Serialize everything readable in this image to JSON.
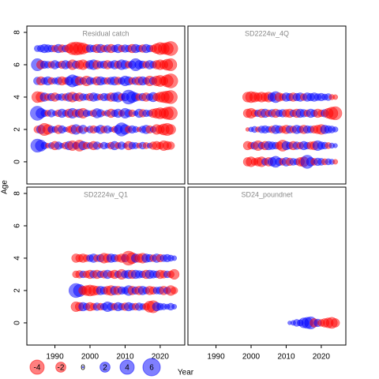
{
  "axes": {
    "xlabel": "Year",
    "ylabel": "Age",
    "xlim": [
      1982,
      2027
    ],
    "ylim": [
      -1.37,
      8.39
    ],
    "xticks": [
      1990,
      2000,
      2010,
      2020
    ],
    "yticks": [
      0,
      2,
      4,
      6,
      8
    ],
    "neg_color": "#ff0000",
    "pos_color": "#0000ff"
  },
  "legend": {
    "values": [
      -4,
      -2,
      0,
      2,
      4,
      6
    ]
  },
  "chart_data": [
    {
      "type": "bubble",
      "title": "Residual catch",
      "x": [
        1985,
        1986,
        1987,
        1988,
        1989,
        1990,
        1991,
        1992,
        1993,
        1994,
        1995,
        1996,
        1997,
        1998,
        1999,
        2000,
        2001,
        2002,
        2003,
        2004,
        2005,
        2006,
        2007,
        2008,
        2009,
        2010,
        2011,
        2012,
        2013,
        2014,
        2015,
        2016,
        2017,
        2018,
        2019,
        2020,
        2021,
        2022,
        2023
      ],
      "ages": [
        1,
        2,
        3,
        4,
        5,
        6,
        7
      ],
      "values": [
        [
          3.5,
          2.5,
          1.0,
          -0.5,
          0.8,
          -1.5,
          1.2,
          0.5,
          -1.0,
          1.5,
          -2.0,
          1.0,
          -2.5,
          1.5,
          -1.0,
          0.8,
          -1.5,
          1.2,
          -0.5,
          1.0,
          0.6,
          -1.0,
          1.5,
          -0.8,
          1.2,
          0.5,
          -1.5,
          1.0,
          0.8,
          -0.6,
          1.0,
          -0.8,
          0.6,
          -1.2,
          -1.5,
          -1.0,
          -2.0,
          -1.5,
          -1.2
        ],
        [
          -1.0,
          1.5,
          -3.0,
          -2.0,
          1.0,
          0.8,
          -1.5,
          1.2,
          0.5,
          -0.8,
          -1.5,
          2.0,
          -1.0,
          1.5,
          -0.5,
          1.0,
          -1.2,
          0.8,
          1.5,
          -1.0,
          1.2,
          0.5,
          -0.8,
          1.5,
          3.5,
          2.0,
          -1.0,
          1.2,
          0.8,
          -0.5,
          1.0,
          1.5,
          -1.2,
          0.8,
          -2.0,
          -1.5,
          -2.5,
          -3.0,
          -2.0
        ],
        [
          4.0,
          2.0,
          1.0,
          -0.8,
          1.2,
          0.5,
          -1.0,
          1.5,
          0.8,
          -1.5,
          2.0,
          -1.2,
          1.5,
          -2.0,
          1.0,
          0.6,
          -1.0,
          1.8,
          1.2,
          -0.5,
          0.8,
          -1.5,
          1.0,
          1.5,
          -0.8,
          2.0,
          1.2,
          -1.0,
          0.5,
          1.5,
          -1.2,
          1.0,
          0.8,
          -1.5,
          -2.0,
          -2.5,
          -2.0,
          -3.0,
          -3.5
        ],
        [
          -2.5,
          -2.0,
          1.5,
          -1.0,
          1.2,
          -1.5,
          0.8,
          1.0,
          -1.0,
          1.5,
          -2.0,
          1.2,
          -1.5,
          1.0,
          0.8,
          -1.2,
          1.5,
          1.0,
          -0.8,
          1.2,
          1.0,
          -1.5,
          1.5,
          2.0,
          -1.0,
          1.2,
          4.0,
          2.5,
          1.5,
          -1.0,
          1.2,
          -1.5,
          1.0,
          1.8,
          -1.2,
          -2.0,
          -2.5,
          -3.0,
          -3.5
        ],
        [
          1.2,
          -1.5,
          1.0,
          1.5,
          -1.0,
          0.8,
          1.2,
          -1.5,
          -1.0,
          1.5,
          3.0,
          2.0,
          -1.5,
          1.0,
          -2.0,
          1.2,
          0.8,
          -1.5,
          1.5,
          1.0,
          -1.0,
          1.2,
          1.5,
          -1.2,
          1.0,
          2.0,
          1.5,
          -1.0,
          1.2,
          -1.5,
          1.5,
          1.0,
          -2.0,
          1.2,
          -2.0,
          -2.5,
          -1.5,
          -3.0,
          -4.0
        ],
        [
          3.0,
          -1.5,
          1.2,
          1.0,
          -1.0,
          1.5,
          0.8,
          -1.2,
          1.5,
          1.0,
          -2.0,
          1.2,
          -1.5,
          -2.0,
          -1.0,
          1.5,
          2.0,
          -1.5,
          1.0,
          1.2,
          -1.5,
          1.0,
          1.5,
          -1.2,
          2.0,
          1.5,
          -1.0,
          1.2,
          3.0,
          1.5,
          1.2,
          -1.0,
          1.5,
          1.0,
          -1.5,
          -2.0,
          -1.5,
          -2.5,
          -3.0
        ],
        [
          0.8,
          1.0,
          1.5,
          1.2,
          1.0,
          -1.0,
          1.5,
          -1.2,
          1.0,
          -1.5,
          -3.0,
          -3.5,
          -3.0,
          -2.5,
          -1.5,
          1.2,
          1.0,
          -1.5,
          1.5,
          -1.0,
          1.2,
          -1.5,
          1.0,
          1.5,
          -1.0,
          1.2,
          1.0,
          -1.5,
          1.5,
          1.0,
          -1.2,
          1.5,
          1.0,
          -1.0,
          -2.0,
          -3.0,
          -2.5,
          -3.0,
          -4.0
        ]
      ]
    },
    {
      "type": "bubble",
      "title": "SD2224w_4Q",
      "x": [
        1999,
        2000,
        2001,
        2002,
        2003,
        2004,
        2005,
        2006,
        2007,
        2008,
        2009,
        2010,
        2011,
        2012,
        2013,
        2014,
        2015,
        2016,
        2017,
        2018,
        2019,
        2020,
        2021,
        2022,
        2023,
        2024
      ],
      "ages": [
        0,
        1,
        2,
        3,
        4
      ],
      "values": [
        [
          -1.5,
          -2.0,
          -1.0,
          -1.5,
          -2.0,
          1.0,
          -1.5,
          1.5,
          2.5,
          1.2,
          -1.0,
          1.5,
          -1.2,
          1.0,
          0.8,
          -1.5,
          -2.0,
          3.5,
          1.5,
          -1.0,
          1.2,
          1.0,
          -0.8,
          0.8,
          0.6,
          -0.5
        ],
        [
          -1.5,
          -1.0,
          1.2,
          -2.0,
          1.0,
          -1.5,
          1.5,
          1.2,
          1.0,
          -1.2,
          -2.5,
          1.5,
          1.0,
          -1.5,
          1.2,
          -1.0,
          1.5,
          1.0,
          -1.2,
          -1.5,
          2.0,
          1.2,
          1.0,
          -0.8,
          0.6,
          0.4
        ],
        [
          -0.3,
          0.5,
          0.8,
          -0.6,
          1.0,
          1.2,
          0.8,
          -1.0,
          1.5,
          1.2,
          -1.0,
          -1.5,
          1.2,
          -1.0,
          1.5,
          1.0,
          -1.5,
          1.2,
          1.0,
          -1.2,
          -1.5,
          -2.0,
          1.5,
          1.2,
          1.0,
          0.6
        ],
        [
          -1.5,
          -2.0,
          -1.0,
          1.0,
          -1.5,
          1.5,
          -1.0,
          1.2,
          -1.5,
          1.0,
          1.2,
          -1.2,
          -1.5,
          1.0,
          -1.5,
          1.5,
          1.2,
          -1.0,
          1.5,
          1.0,
          -1.5,
          -1.0,
          1.2,
          -2.0,
          -3.0,
          -3.5
        ],
        [
          -2.0,
          -2.5,
          -2.0,
          -1.5,
          -2.0,
          -1.5,
          -2.0,
          1.5,
          2.5,
          -1.5,
          -1.0,
          1.5,
          1.2,
          -1.5,
          1.2,
          1.5,
          -1.0,
          1.5,
          1.2,
          1.5,
          1.0,
          1.2,
          0.8,
          1.0,
          -0.6,
          -0.5
        ]
      ]
    },
    {
      "type": "bubble",
      "title": "SD2224w_Q1",
      "x": [
        1996,
        1997,
        1998,
        1999,
        2000,
        2001,
        2002,
        2003,
        2004,
        2005,
        2006,
        2007,
        2008,
        2009,
        2010,
        2011,
        2012,
        2013,
        2014,
        2015,
        2016,
        2017,
        2018,
        2019,
        2020,
        2021,
        2022,
        2023,
        2024
      ],
      "ages": [
        1,
        2,
        3,
        4
      ],
      "values": [
        [
          -2.0,
          -1.5,
          1.5,
          1.0,
          -1.5,
          -1.0,
          1.2,
          -1.0,
          1.0,
          2.0,
          1.2,
          -1.0,
          1.5,
          1.0,
          -1.2,
          1.5,
          1.0,
          -1.0,
          1.2,
          0.8,
          -1.0,
          -2.5,
          -3.0,
          1.5,
          1.0,
          0.8,
          0.6,
          1.0,
          0.5
        ],
        [
          4.0,
          3.0,
          -1.5,
          -2.0,
          -2.5,
          -2.0,
          -1.5,
          1.5,
          1.2,
          -1.5,
          -2.0,
          1.5,
          -1.5,
          1.2,
          1.0,
          2.0,
          -1.5,
          1.2,
          -1.5,
          1.5,
          1.0,
          -1.5,
          -1.2,
          1.0,
          1.2,
          -1.5,
          1.0,
          -2.0,
          -1.0
        ],
        [
          -1.0,
          -1.2,
          1.0,
          -1.0,
          -1.5,
          1.2,
          -1.5,
          1.0,
          -1.2,
          1.5,
          -1.0,
          -1.5,
          1.0,
          -2.0,
          1.2,
          1.5,
          -1.5,
          1.5,
          1.2,
          1.0,
          -1.5,
          1.5,
          1.2,
          1.0,
          -1.5,
          -1.2,
          1.0,
          -1.0,
          -2.0
        ],
        [
          -1.5,
          -1.2,
          -1.5,
          -1.0,
          1.0,
          1.5,
          -1.0,
          1.2,
          -2.0,
          -1.5,
          1.5,
          1.2,
          -1.0,
          -1.5,
          1.2,
          -4.0,
          -2.5,
          1.5,
          -1.5,
          -2.0,
          1.5,
          1.2,
          -1.0,
          1.5,
          -1.2,
          1.0,
          1.2,
          0.8,
          0.5
        ]
      ]
    },
    {
      "type": "bubble",
      "title": "SD24_poundnet",
      "x": [
        2011,
        2012,
        2013,
        2014,
        2015,
        2016,
        2017,
        2018,
        2019,
        2020,
        2021,
        2022,
        2023,
        2024
      ],
      "ages": [
        0
      ],
      "values": [
        [
          0.3,
          0.5,
          1.0,
          0.8,
          2.0,
          2.5,
          3.0,
          -1.5,
          1.2,
          -1.0,
          -1.5,
          -2.0,
          -2.5,
          -1.5
        ]
      ]
    }
  ]
}
